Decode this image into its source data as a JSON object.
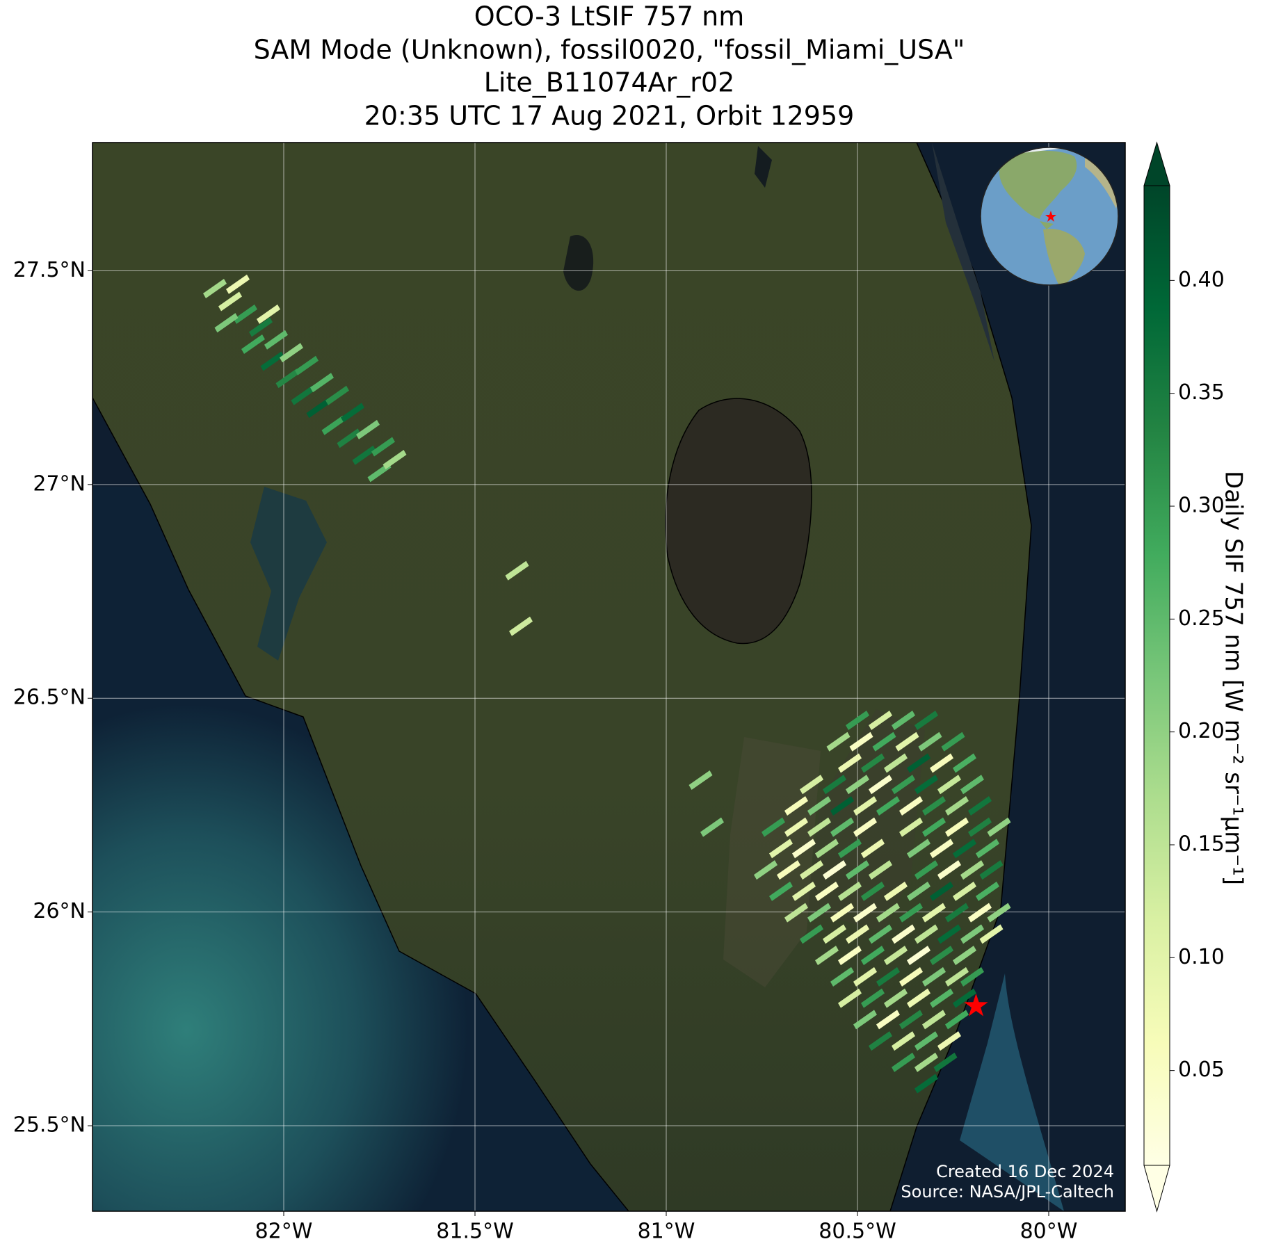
{
  "chart_data": {
    "type": "map",
    "title": [
      "OCO-3 LtSIF 757 nm",
      "SAM Mode (Unknown), fossil0020, \"fossil_Miami_USA\"",
      "Lite_B11074Ar_r02",
      "20:35 UTC 17 Aug 2021, Orbit 12959"
    ],
    "xlim": [
      -82.5,
      -79.8
    ],
    "ylim": [
      25.3,
      27.8
    ],
    "xticks": [
      {
        "value": -82,
        "label": "82°W"
      },
      {
        "value": -81.5,
        "label": "81.5°W"
      },
      {
        "value": -81,
        "label": "81°W"
      },
      {
        "value": -80.5,
        "label": "80.5°W"
      },
      {
        "value": -80,
        "label": "80°W"
      }
    ],
    "yticks": [
      {
        "value": 25.5,
        "label": "25.5°N"
      },
      {
        "value": 26,
        "label": "26°N"
      },
      {
        "value": 26.5,
        "label": "26.5°N"
      },
      {
        "value": 27,
        "label": "27°N"
      },
      {
        "value": 27.5,
        "label": "27.5°N"
      }
    ],
    "grid": true,
    "colorbar": {
      "label": "Daily SIF 757 nm [W m⁻² sr⁻¹µm⁻¹]",
      "clim": [
        0.008,
        0.442
      ],
      "ticks": [
        0.05,
        0.1,
        0.15,
        0.2,
        0.25,
        0.3,
        0.35,
        0.4
      ],
      "tick_labels": [
        "0.05",
        "0.10",
        "0.15",
        "0.20",
        "0.25",
        "0.30",
        "0.35",
        "0.40"
      ],
      "colormap": [
        "#ffffe5",
        "#f7fcb9",
        "#d9f0a3",
        "#addd8e",
        "#78c679",
        "#41ab5d",
        "#238443",
        "#006837",
        "#004529"
      ]
    },
    "footprints": {
      "lon": [
        -82.18,
        -82.14,
        -82.1,
        -82.15,
        -82.06,
        -82.08,
        -82.02,
        -82.03,
        -81.98,
        -81.99,
        -81.94,
        -81.95,
        -81.9,
        -81.91,
        -81.86,
        -81.87,
        -81.82,
        -81.83,
        -81.78,
        -81.79,
        -81.74,
        -81.75,
        -81.71,
        -82.12,
        -82.04,
        -81.39,
        -81.38,
        -80.91,
        -80.88,
        -80.5,
        -80.44,
        -80.38,
        -80.32,
        -80.55,
        -80.49,
        -80.43,
        -80.37,
        -80.31,
        -80.25,
        -80.52,
        -80.46,
        -80.4,
        -80.34,
        -80.28,
        -80.22,
        -80.62,
        -80.56,
        -80.5,
        -80.44,
        -80.38,
        -80.32,
        -80.26,
        -80.2,
        -80.66,
        -80.6,
        -80.54,
        -80.48,
        -80.42,
        -80.36,
        -80.3,
        -80.24,
        -80.18,
        -80.72,
        -80.66,
        -80.6,
        -80.54,
        -80.48,
        -80.36,
        -80.3,
        -80.24,
        -80.18,
        -80.13,
        -80.7,
        -80.64,
        -80.58,
        -80.52,
        -80.46,
        -80.34,
        -80.28,
        -80.22,
        -80.16,
        -80.74,
        -80.68,
        -80.62,
        -80.56,
        -80.5,
        -80.44,
        -80.32,
        -80.26,
        -80.2,
        -80.15,
        -80.7,
        -80.64,
        -80.58,
        -80.52,
        -80.46,
        -80.4,
        -80.34,
        -80.28,
        -80.22,
        -80.16,
        -80.66,
        -80.6,
        -80.54,
        -80.48,
        -80.42,
        -80.36,
        -80.3,
        -80.24,
        -80.18,
        -80.13,
        -80.62,
        -80.56,
        -80.5,
        -80.44,
        -80.38,
        -80.32,
        -80.26,
        -80.2,
        -80.15,
        -80.58,
        -80.52,
        -80.46,
        -80.4,
        -80.34,
        -80.28,
        -80.22,
        -80.54,
        -80.48,
        -80.42,
        -80.36,
        -80.3,
        -80.24,
        -80.2,
        -80.52,
        -80.46,
        -80.4,
        -80.34,
        -80.28,
        -80.22,
        -80.48,
        -80.42,
        -80.36,
        -80.3,
        -80.24,
        -80.44,
        -80.38,
        -80.32,
        -80.26,
        -80.38,
        -80.32,
        -80.27,
        -80.32
      ],
      "lat": [
        27.46,
        27.43,
        27.4,
        27.38,
        27.37,
        27.33,
        27.34,
        27.29,
        27.31,
        27.25,
        27.28,
        27.21,
        27.24,
        27.18,
        27.21,
        27.14,
        27.17,
        27.11,
        27.13,
        27.07,
        27.09,
        27.03,
        27.06,
        27.47,
        27.4,
        26.8,
        26.67,
        26.31,
        26.2,
        26.45,
        26.45,
        26.45,
        26.45,
        26.4,
        26.4,
        26.4,
        26.4,
        26.4,
        26.4,
        26.35,
        26.35,
        26.35,
        26.35,
        26.35,
        26.35,
        26.3,
        26.3,
        26.3,
        26.3,
        26.3,
        26.3,
        26.3,
        26.3,
        26.25,
        26.25,
        26.25,
        26.25,
        26.25,
        26.25,
        26.25,
        26.25,
        26.25,
        26.2,
        26.2,
        26.2,
        26.2,
        26.2,
        26.2,
        26.2,
        26.2,
        26.2,
        26.2,
        26.15,
        26.15,
        26.15,
        26.15,
        26.15,
        26.15,
        26.15,
        26.15,
        26.15,
        26.1,
        26.1,
        26.1,
        26.1,
        26.1,
        26.1,
        26.1,
        26.1,
        26.1,
        26.1,
        26.05,
        26.05,
        26.05,
        26.05,
        26.05,
        26.05,
        26.05,
        26.05,
        26.05,
        26.05,
        26.0,
        26.0,
        26.0,
        26.0,
        26.0,
        26.0,
        26.0,
        26.0,
        26.0,
        26.0,
        25.95,
        25.95,
        25.95,
        25.95,
        25.95,
        25.95,
        25.95,
        25.95,
        25.95,
        25.9,
        25.9,
        25.9,
        25.9,
        25.9,
        25.9,
        25.9,
        25.85,
        25.85,
        25.85,
        25.85,
        25.85,
        25.85,
        25.85,
        25.8,
        25.8,
        25.8,
        25.8,
        25.8,
        25.8,
        25.75,
        25.75,
        25.75,
        25.75,
        25.75,
        25.7,
        25.7,
        25.7,
        25.7,
        25.65,
        25.65,
        25.65,
        25.6
      ],
      "values": [
        0.18,
        0.12,
        0.3,
        0.22,
        0.35,
        0.28,
        0.25,
        0.38,
        0.2,
        0.33,
        0.3,
        0.36,
        0.26,
        0.4,
        0.32,
        0.29,
        0.38,
        0.34,
        0.22,
        0.36,
        0.3,
        0.25,
        0.18,
        0.08,
        0.1,
        0.15,
        0.13,
        0.2,
        0.22,
        0.3,
        0.12,
        0.25,
        0.35,
        0.18,
        0.05,
        0.28,
        0.1,
        0.22,
        0.3,
        0.08,
        0.33,
        0.15,
        0.4,
        0.06,
        0.27,
        0.12,
        0.35,
        0.2,
        0.04,
        0.3,
        0.38,
        0.14,
        0.25,
        0.06,
        0.22,
        0.4,
        0.1,
        0.28,
        0.05,
        0.32,
        0.18,
        0.36,
        0.3,
        0.08,
        0.15,
        0.25,
        0.05,
        0.12,
        0.28,
        0.06,
        0.34,
        0.2,
        0.1,
        0.04,
        0.18,
        0.3,
        0.08,
        0.22,
        0.05,
        0.38,
        0.26,
        0.2,
        0.06,
        0.12,
        0.03,
        0.25,
        0.15,
        0.3,
        0.04,
        0.18,
        0.35,
        0.28,
        0.1,
        0.05,
        0.16,
        0.32,
        0.08,
        0.22,
        0.4,
        0.12,
        0.27,
        0.15,
        0.22,
        0.06,
        0.04,
        0.18,
        0.3,
        0.1,
        0.35,
        0.05,
        0.2,
        0.3,
        0.12,
        0.08,
        0.25,
        0.04,
        0.15,
        0.38,
        0.22,
        0.1,
        0.18,
        0.05,
        0.28,
        0.14,
        0.03,
        0.32,
        0.2,
        0.25,
        0.1,
        0.35,
        0.06,
        0.22,
        0.15,
        0.3,
        0.12,
        0.3,
        0.18,
        0.08,
        0.26,
        0.38,
        0.22,
        0.05,
        0.33,
        0.15,
        0.28,
        0.34,
        0.12,
        0.25,
        0.08,
        0.3,
        0.18,
        0.36,
        0.38
      ]
    },
    "target": {
      "lon": -80.19,
      "lat": 25.78,
      "color": "#ff0000"
    },
    "credits": [
      "Created 16 Dec 2024",
      "Source: NASA/JPL-Caltech"
    ]
  }
}
